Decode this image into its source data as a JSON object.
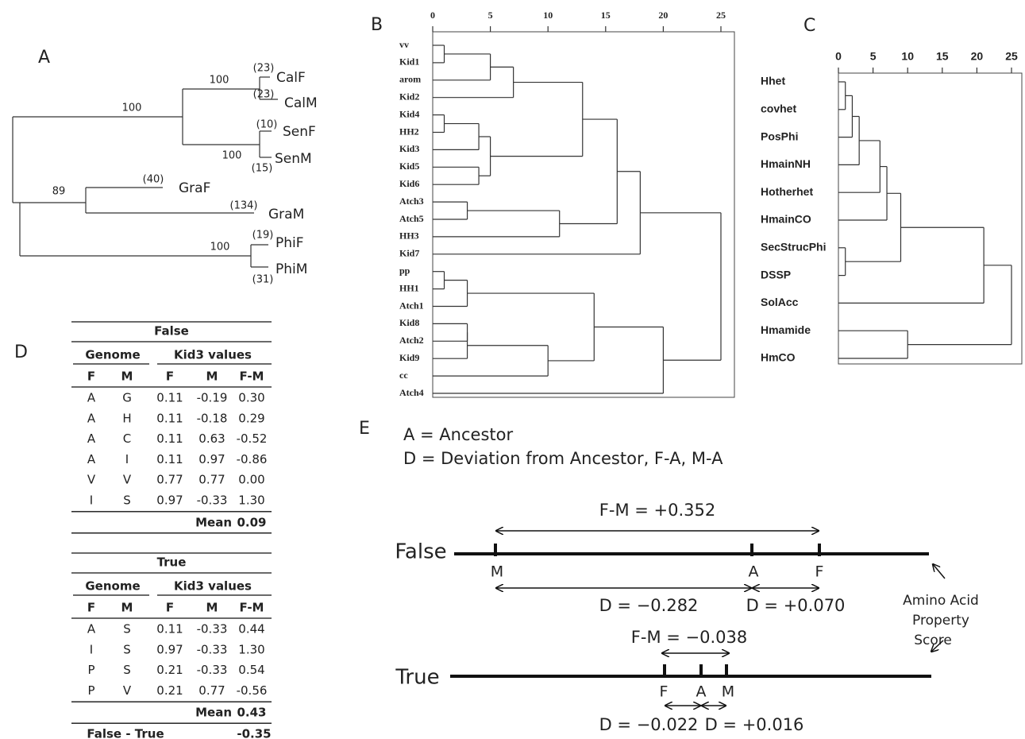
{
  "panel_a": {
    "label": "A",
    "support": [
      "100",
      "100",
      "100",
      "89",
      "100"
    ],
    "leaves": [
      {
        "name": "CalF",
        "count": "(23)"
      },
      {
        "name": "CalM",
        "count": "(23)"
      },
      {
        "name": "SenF",
        "count": "(10)"
      },
      {
        "name": "SenM",
        "count": "(15)"
      },
      {
        "name": "GraF",
        "count": "(40)"
      },
      {
        "name": "GraM",
        "count": "(134)"
      },
      {
        "name": "PhiF",
        "count": "(19)"
      },
      {
        "name": "PhiM",
        "count": "(31)"
      }
    ]
  },
  "panel_b": {
    "label": "B",
    "axis_ticks": [
      0,
      5,
      10,
      15,
      20,
      25
    ],
    "leaves": [
      "vv",
      "Kid1",
      "arom",
      "Kid2",
      "Kid4",
      "HH2",
      "Kid3",
      "Kid5",
      "Kid6",
      "Atch3",
      "Atch5",
      "HH3",
      "Kid7",
      "pp",
      "HH1",
      "Atch1",
      "Kid8",
      "Atch2",
      "Kid9",
      "cc",
      "Atch4"
    ],
    "merges": [
      {
        "join": [
          0,
          1
        ],
        "height": 1
      },
      {
        "join": [
          21,
          2
        ],
        "height": 5
      },
      {
        "join": [
          22,
          3
        ],
        "height": 7
      },
      {
        "join": [
          4,
          5
        ],
        "height": 1
      },
      {
        "join": [
          24,
          6
        ],
        "height": 4
      },
      {
        "join": [
          7,
          8
        ],
        "height": 4
      },
      {
        "join": [
          25,
          26
        ],
        "height": 5
      },
      {
        "join": [
          23,
          27
        ],
        "height": 13
      },
      {
        "join": [
          9,
          10
        ],
        "height": 3
      },
      {
        "join": [
          29,
          11
        ],
        "height": 11
      },
      {
        "join": [
          28,
          30
        ],
        "height": 16
      },
      {
        "join": [
          31,
          12
        ],
        "height": 18
      },
      {
        "join": [
          13,
          14
        ],
        "height": 1
      },
      {
        "join": [
          33,
          15
        ],
        "height": 3
      },
      {
        "join": [
          16,
          17
        ],
        "height": 3
      },
      {
        "join": [
          35,
          18
        ],
        "height": 3
      },
      {
        "join": [
          36,
          19
        ],
        "height": 10
      },
      {
        "join": [
          34,
          37
        ],
        "height": 14
      },
      {
        "join": [
          38,
          20
        ],
        "height": 20
      },
      {
        "join": [
          32,
          39
        ],
        "height": 25
      }
    ]
  },
  "panel_c": {
    "label": "C",
    "axis_ticks": [
      0,
      5,
      10,
      15,
      20,
      25
    ],
    "leaves": [
      "Hhet",
      "covhet",
      "PosPhi",
      "HmainNH",
      "Hotherhet",
      "HmainCO",
      "SecStrucPhi",
      "DSSP",
      "SolAcc",
      "Hmamide",
      "HmCO"
    ],
    "merges": [
      {
        "join": [
          0,
          1
        ],
        "height": 1
      },
      {
        "join": [
          11,
          2
        ],
        "height": 2
      },
      {
        "join": [
          12,
          3
        ],
        "height": 3
      },
      {
        "join": [
          13,
          4
        ],
        "height": 6
      },
      {
        "join": [
          14,
          5
        ],
        "height": 7
      },
      {
        "join": [
          6,
          7
        ],
        "height": 1
      },
      {
        "join": [
          15,
          16
        ],
        "height": 9
      },
      {
        "join": [
          17,
          8
        ],
        "height": 21
      },
      {
        "join": [
          9,
          10
        ],
        "height": 10
      },
      {
        "join": [
          18,
          19
        ],
        "height": 25
      }
    ]
  },
  "panel_d": {
    "label": "D",
    "tables": [
      {
        "title": "False",
        "group_headers": [
          "Genome",
          "Kid3 values"
        ],
        "col_headers": [
          "F",
          "M",
          "F",
          "M",
          "F-M"
        ],
        "rows": [
          [
            "A",
            "G",
            "0.11",
            "-0.19",
            "0.30"
          ],
          [
            "A",
            "H",
            "0.11",
            "-0.18",
            "0.29"
          ],
          [
            "A",
            "C",
            "0.11",
            "0.63",
            "-0.52"
          ],
          [
            "A",
            "I",
            "0.11",
            "0.97",
            "-0.86"
          ],
          [
            "V",
            "V",
            "0.77",
            "0.77",
            "0.00"
          ],
          [
            "I",
            "S",
            "0.97",
            "-0.33",
            "1.30"
          ]
        ],
        "mean_label": "Mean",
        "mean": "0.09"
      },
      {
        "title": "True",
        "group_headers": [
          "Genome",
          "Kid3 values"
        ],
        "col_headers": [
          "F",
          "M",
          "F",
          "M",
          "F-M"
        ],
        "rows": [
          [
            "A",
            "S",
            "0.11",
            "-0.33",
            "0.44"
          ],
          [
            "I",
            "S",
            "0.97",
            "-0.33",
            "1.30"
          ],
          [
            "P",
            "S",
            "0.21",
            "-0.33",
            "0.54"
          ],
          [
            "P",
            "V",
            "0.21",
            "0.77",
            "-0.56"
          ]
        ],
        "mean_label": "Mean",
        "mean": "0.43"
      }
    ],
    "difference_label": "False - True",
    "difference": "-0.35"
  },
  "panel_e": {
    "label": "E",
    "legend": [
      "A = Ancestor",
      "D = Deviation from Ancestor, F-A, M-A"
    ],
    "false": {
      "name": "False",
      "fm": "F-M = +0.352",
      "points": [
        "M",
        "A",
        "F"
      ],
      "d_left": "D = −0.282",
      "d_right": "D = +0.070"
    },
    "true": {
      "name": "True",
      "fm": "F-M = −0.038",
      "points": [
        "F",
        "A",
        "M"
      ],
      "d_left": "D = −0.022",
      "d_right": "D = +0.016"
    },
    "score_label": [
      "Amino Acid",
      "Property",
      "Score"
    ]
  }
}
